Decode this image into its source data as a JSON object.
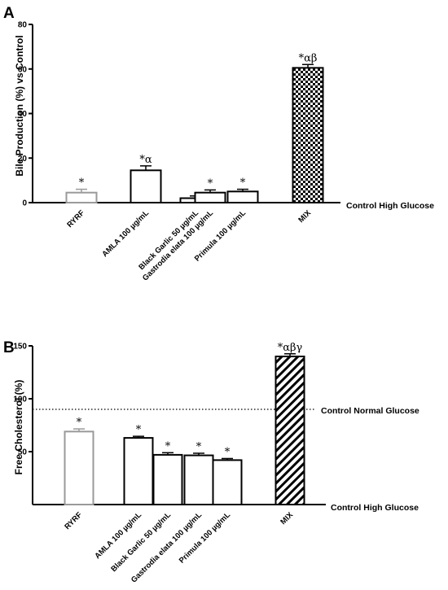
{
  "panels": [
    {
      "letter": "A",
      "ylabel": "Bile Production (%) vs Control",
      "reference_label": "Control High Glucose"
    },
    {
      "letter": "B",
      "ylabel": "Free Cholesterol (%)",
      "reference_label": "Control High Glucose",
      "dotted_label": "Control Normal Glucose"
    }
  ],
  "chart_data": [
    {
      "type": "bar",
      "title": "",
      "xlabel": "",
      "ylabel": "Bile Production (%) vs Control",
      "ylim": [
        0,
        80
      ],
      "yticks": [
        "0",
        "20",
        "40",
        "60",
        "80"
      ],
      "ytick_values": [
        0,
        20,
        40,
        60,
        80
      ],
      "categories": [
        "RYRF",
        "AMLA 100 µg/mL",
        "Black Garlic 50 µg/mL",
        "Gastrodia elata 100 µg/mL",
        "Primula 100 µg/mL",
        "MIX"
      ],
      "values": [
        4.5,
        14.5,
        2.0,
        4.5,
        5.0,
        60.5
      ],
      "errors": [
        1.5,
        2.0,
        1.0,
        1.2,
        1.0,
        1.5
      ],
      "significance": [
        "*",
        "*α",
        "",
        "*",
        "*",
        "*αβ"
      ],
      "fills": [
        "white-gray-edge",
        "white",
        "white",
        "white",
        "white",
        "checker"
      ],
      "baseline_label": "Control High Glucose",
      "grid": false
    },
    {
      "type": "bar",
      "title": "",
      "xlabel": "",
      "ylabel": "Free Cholesterol (%)",
      "ylim": [
        0,
        150
      ],
      "yticks": [
        "50",
        "100",
        "150"
      ],
      "ytick_values": [
        50,
        100,
        150
      ],
      "categories": [
        "RYRF",
        "AMLA 100 µg/mL",
        "Black Garlic 50 µg/mL",
        "Gastrodia elata 100 µg/mL",
        "Primula 100 µg/mL",
        "MIX"
      ],
      "values": [
        69,
        63,
        47,
        46.5,
        42,
        140
      ],
      "errors": [
        2.5,
        1.5,
        2.0,
        2.0,
        1.5,
        2.5
      ],
      "significance": [
        "*",
        "*",
        "*",
        "*",
        "*",
        "*αβγ"
      ],
      "fills": [
        "white-gray-edge",
        "white",
        "white",
        "white",
        "white",
        "hatch"
      ],
      "baseline_label": "Control High Glucose",
      "reference_line": {
        "value": 90,
        "label": "Control Normal Glucose",
        "style": "dotted"
      },
      "grid": false
    }
  ]
}
